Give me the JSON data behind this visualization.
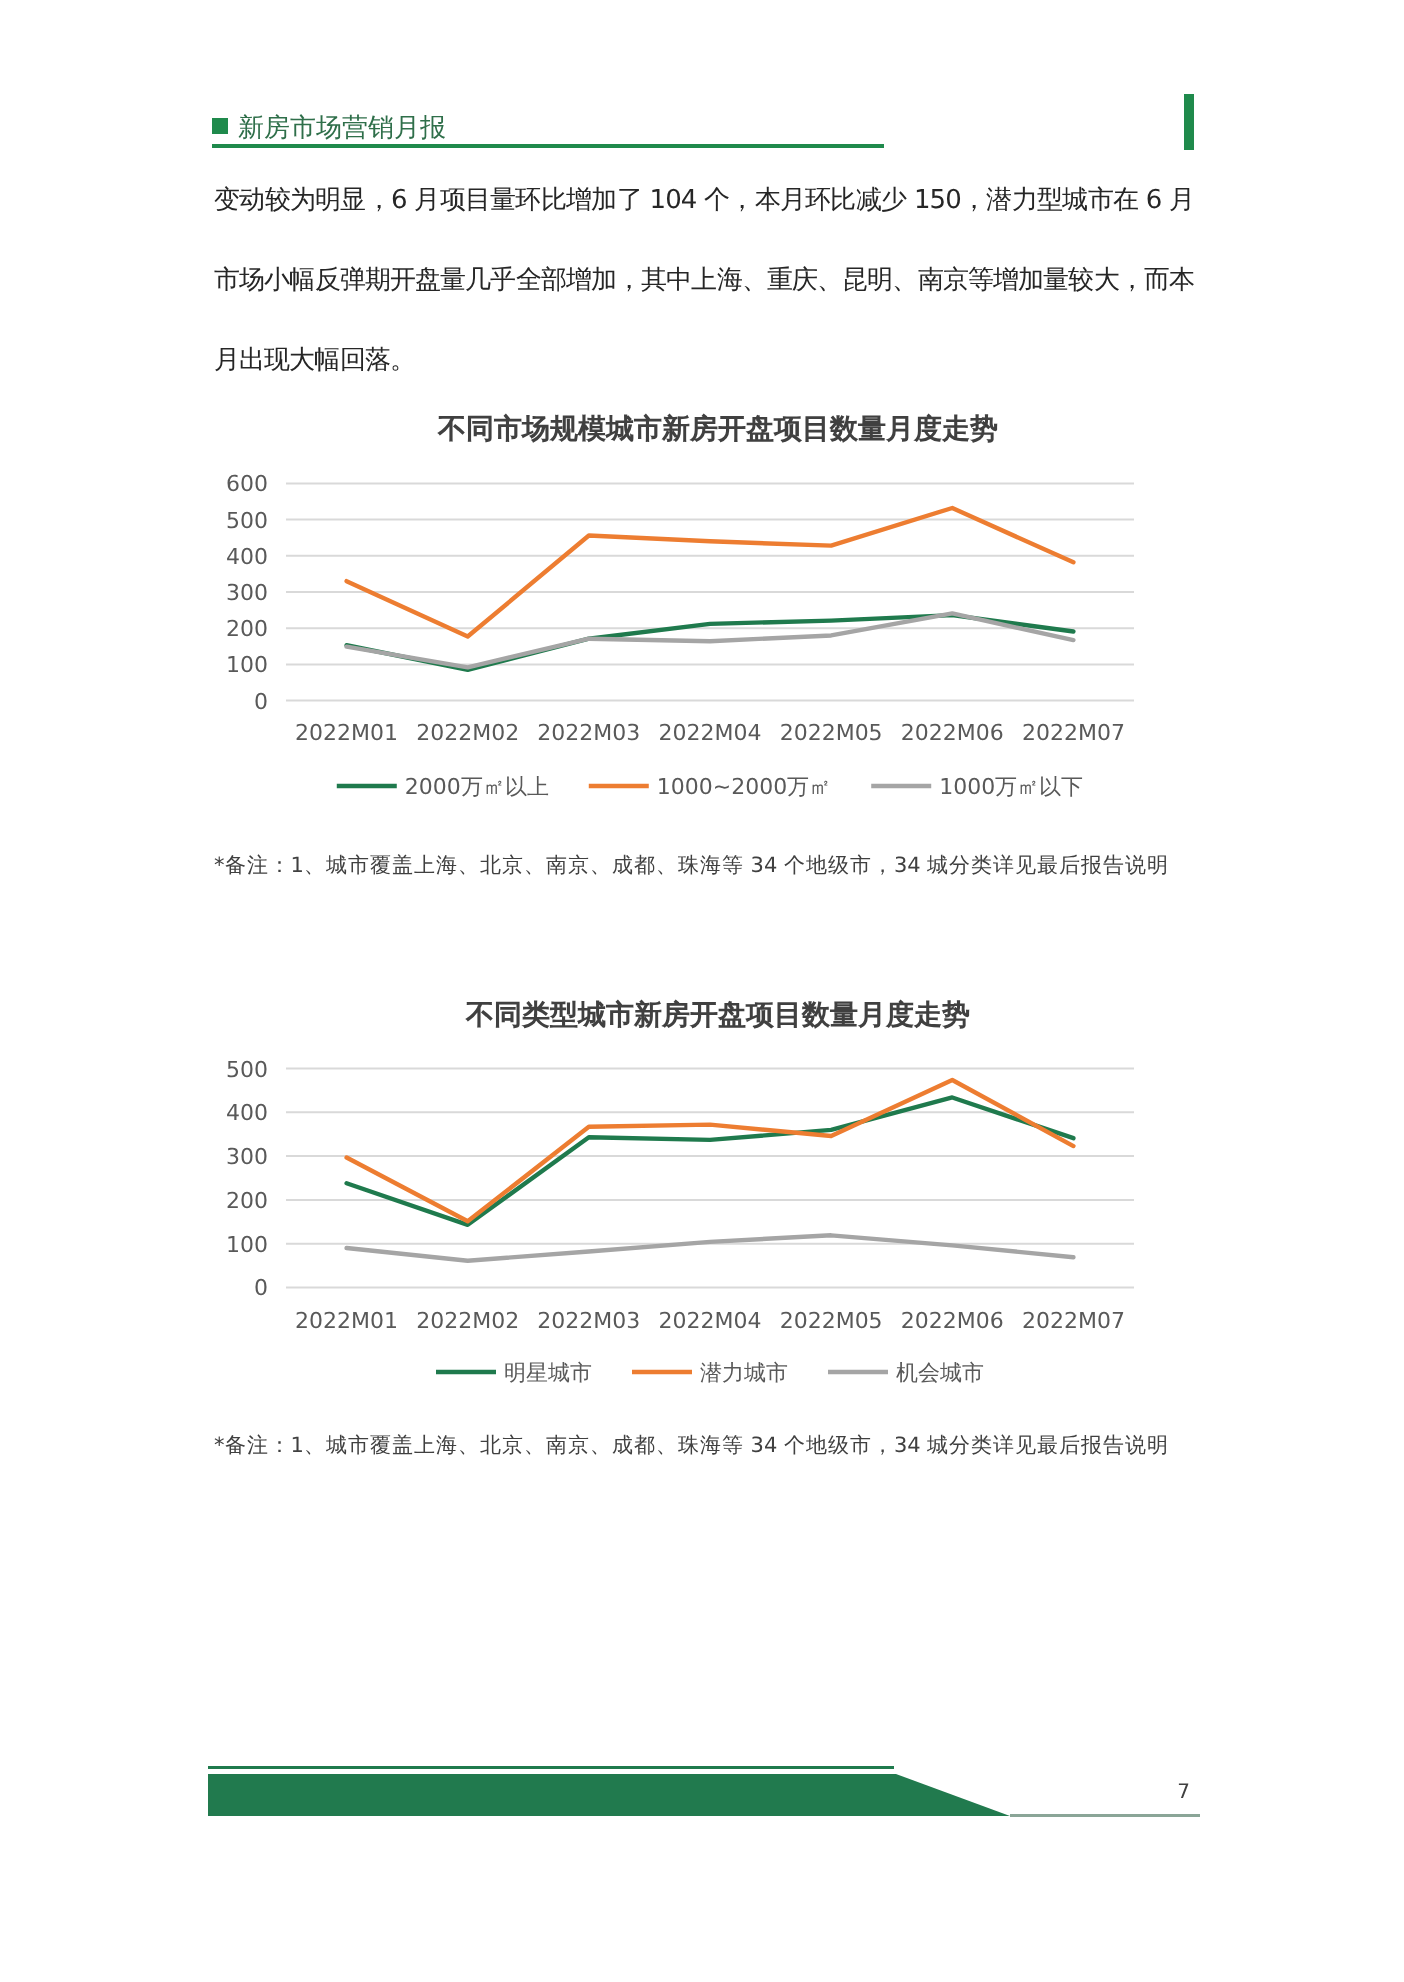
{
  "chart_data": [
    {
      "type": "line",
      "title": "不同市场规模城市新房开盘项目数量月度走势",
      "categories": [
        "2022M01",
        "2022M02",
        "2022M03",
        "2022M04",
        "2022M05",
        "2022M06",
        "2022M07"
      ],
      "series": [
        {
          "name": "2000万㎡以上",
          "color": "#1f7a4d",
          "values": [
            153,
            85,
            171,
            212,
            221,
            236,
            191
          ]
        },
        {
          "name": "1000~2000万㎡",
          "color": "#ed7d31",
          "values": [
            330,
            177,
            456,
            440,
            428,
            532,
            382
          ]
        },
        {
          "name": "1000万㎡以下",
          "color": "#a5a5a5",
          "values": [
            149,
            92,
            171,
            164,
            180,
            241,
            167
          ]
        }
      ],
      "ylim": [
        0,
        600
      ],
      "yticks": [
        0,
        100,
        200,
        300,
        400,
        500,
        600
      ],
      "grid": "y",
      "legend": "bottom",
      "annotations": [
        "新房市场营销月报",
        "变动较为明显，6 月项目量环比增加了 104 个，本月环比减少 150，潜力型城市在 6 月市场小幅反弹期开盘量几乎全部增加，其中上海、重庆、昆明、南京等增加量较大，而本月出现大幅回落。",
        "*备注：1、城市覆盖上海、北京、南京、成都、珠海等 34 个地级市，34 城分类详见最后报告说明"
      ]
    },
    {
      "type": "line",
      "title": "不同类型城市新房开盘项目数量月度走势",
      "categories": [
        "2022M01",
        "2022M02",
        "2022M03",
        "2022M04",
        "2022M05",
        "2022M06",
        "2022M07"
      ],
      "series": [
        {
          "name": "明星城市",
          "color": "#1f7a4d",
          "values": [
            238,
            143,
            343,
            337,
            360,
            434,
            341
          ]
        },
        {
          "name": "潜力城市",
          "color": "#ed7d31",
          "values": [
            297,
            151,
            367,
            372,
            346,
            474,
            323
          ]
        },
        {
          "name": "机会城市",
          "color": "#a5a5a5",
          "values": [
            90,
            61,
            82,
            104,
            119,
            96,
            69
          ]
        }
      ],
      "ylim": [
        0,
        500
      ],
      "yticks": [
        0,
        100,
        200,
        300,
        400,
        500
      ],
      "grid": "y",
      "legend": "bottom",
      "annotations": [
        "*备注：1、城市覆盖上海、北京、南京、成都、珠海等 34 个地级市，34 城分类详见最后报告说明",
        "7"
      ]
    }
  ]
}
